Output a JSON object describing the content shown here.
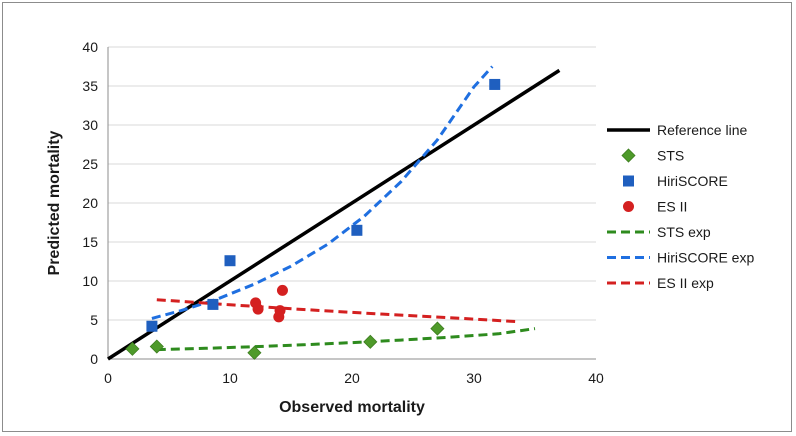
{
  "chart_data": {
    "type": "scatter",
    "xlabel": "Observed mortality",
    "ylabel": "Predicted mortality",
    "xlim": [
      0,
      40
    ],
    "ylim": [
      0,
      40
    ],
    "x_ticks": [
      0,
      10,
      20,
      30,
      40
    ],
    "y_ticks": [
      0,
      5,
      10,
      15,
      20,
      25,
      30,
      35,
      40
    ],
    "legend_position": "right",
    "series": [
      {
        "name": "Reference line",
        "kind": "line",
        "style": "solid",
        "color": "#000000",
        "points": [
          [
            0,
            0
          ],
          [
            37,
            37
          ]
        ]
      },
      {
        "name": "STS",
        "kind": "scatter",
        "marker": "diamond",
        "color": "#4e9a2a",
        "points": [
          [
            2,
            1.3
          ],
          [
            4,
            1.6
          ],
          [
            12,
            0.8
          ],
          [
            21.5,
            2.2
          ],
          [
            27,
            3.9
          ]
        ]
      },
      {
        "name": "HiriSCORE",
        "kind": "scatter",
        "marker": "square",
        "color": "#1f5fbf",
        "points": [
          [
            3.6,
            4.2
          ],
          [
            8.6,
            7
          ],
          [
            10,
            12.6
          ],
          [
            20.4,
            16.5
          ],
          [
            31.7,
            35.2
          ]
        ]
      },
      {
        "name": "ES II",
        "kind": "scatter",
        "marker": "circle",
        "color": "#d42020",
        "points": [
          [
            12.1,
            7.2
          ],
          [
            12.3,
            6.4
          ],
          [
            14,
            5.4
          ],
          [
            14.1,
            6.2
          ],
          [
            14.3,
            8.8
          ]
        ]
      },
      {
        "name": "STS exp",
        "kind": "trend",
        "style": "dashed",
        "color": "#2e8b1e",
        "points": [
          [
            4,
            1.2
          ],
          [
            8,
            1.37
          ],
          [
            12,
            1.58
          ],
          [
            16,
            1.82
          ],
          [
            20,
            2.1
          ],
          [
            24,
            2.42
          ],
          [
            28,
            2.8
          ],
          [
            32,
            3.23
          ],
          [
            35,
            3.9
          ]
        ]
      },
      {
        "name": "HiriSCORE exp",
        "kind": "trend",
        "style": "dashed",
        "color": "#1f6fe0",
        "points": [
          [
            3.6,
            5.2
          ],
          [
            6,
            6.2
          ],
          [
            9,
            7.7
          ],
          [
            12,
            9.6
          ],
          [
            15,
            11.9
          ],
          [
            18,
            14.7
          ],
          [
            21,
            18.3
          ],
          [
            24,
            22.7
          ],
          [
            27,
            28.1
          ],
          [
            30,
            34.9
          ],
          [
            31.5,
            37.5
          ]
        ]
      },
      {
        "name": "ES II exp",
        "kind": "trend",
        "style": "dashed",
        "color": "#d42020",
        "points": [
          [
            4,
            7.6
          ],
          [
            10,
            6.95
          ],
          [
            16,
            6.35
          ],
          [
            22,
            5.8
          ],
          [
            28,
            5.3
          ],
          [
            33.5,
            4.8
          ]
        ]
      }
    ]
  }
}
